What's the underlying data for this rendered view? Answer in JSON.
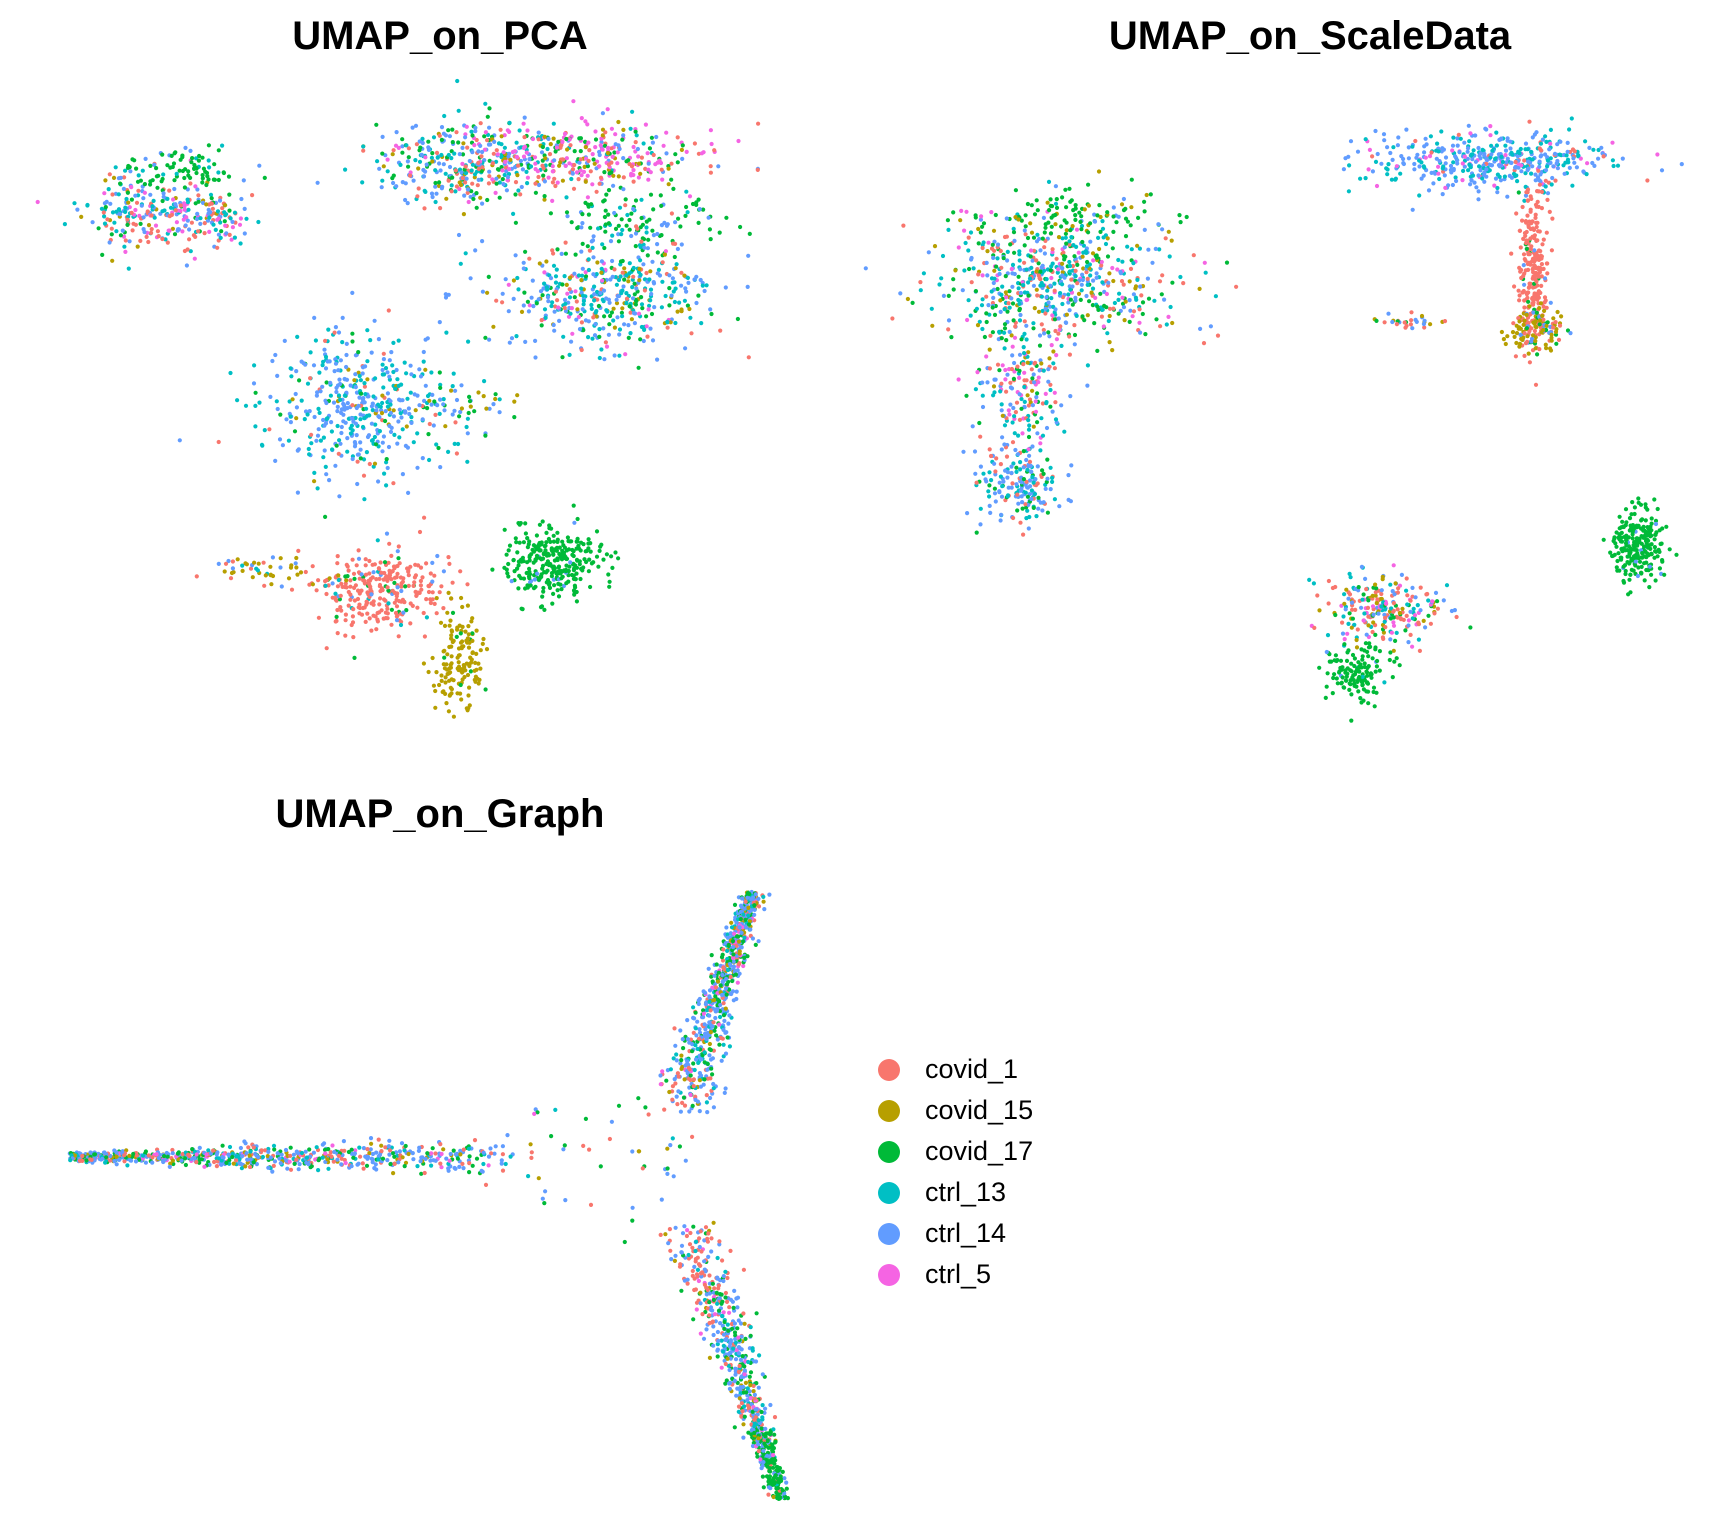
{
  "chart_data": [
    {
      "type": "scatter",
      "title": "UMAP_on_PCA",
      "xlabel": "",
      "ylabel": "",
      "axes": "none",
      "grid": false,
      "legend": "none",
      "clusters": [
        {
          "group": "ctrl_14",
          "mix": {
            "covid_1": 0.2,
            "covid_15": 0.05,
            "covid_17": 0.1,
            "ctrl_13": 0.25,
            "ctrl_14": 0.25,
            "ctrl_5": 0.15
          },
          "center": [
            -8.2,
            7.9
          ],
          "spread": [
            0.9,
            0.55
          ],
          "n": 220
        },
        {
          "group": "covid_17",
          "mix": {
            "covid_17": 0.8,
            "ctrl_13": 0.1,
            "ctrl_14": 0.1
          },
          "center": [
            -7.3,
            9.0
          ],
          "spread": [
            0.9,
            0.35
          ],
          "n": 90
        },
        {
          "group": "mixed",
          "mix": {
            "covid_1": 0.25,
            "covid_15": 0.05,
            "covid_17": 0.15,
            "ctrl_13": 0.2,
            "ctrl_14": 0.2,
            "ctrl_5": 0.15
          },
          "center": [
            -6.3,
            7.7
          ],
          "spread": [
            0.5,
            0.35
          ],
          "n": 90
        },
        {
          "group": "ctrl_14",
          "mix": {
            "covid_1": 0.15,
            "covid_15": 0.05,
            "covid_17": 0.2,
            "ctrl_13": 0.25,
            "ctrl_14": 0.3,
            "ctrl_5": 0.05
          },
          "center": [
            0.8,
            9.2
          ],
          "spread": [
            1.3,
            0.6
          ],
          "n": 360
        },
        {
          "group": "ctrl_5",
          "mix": {
            "covid_1": 0.2,
            "covid_15": 0.1,
            "covid_17": 0.15,
            "ctrl_13": 0.05,
            "ctrl_14": 0.15,
            "ctrl_5": 0.35
          },
          "center": [
            4.3,
            9.4
          ],
          "spread": [
            1.6,
            0.5
          ],
          "n": 330
        },
        {
          "group": "covid_17",
          "mix": {
            "covid_1": 0.05,
            "covid_17": 0.7,
            "ctrl_13": 0.1,
            "ctrl_14": 0.15
          },
          "center": [
            5.5,
            7.6
          ],
          "spread": [
            1.2,
            0.45
          ],
          "n": 120
        },
        {
          "group": "ctrl_13",
          "mix": {
            "covid_1": 0.1,
            "covid_15": 0.1,
            "covid_17": 0.15,
            "ctrl_13": 0.3,
            "ctrl_14": 0.3,
            "ctrl_5": 0.05
          },
          "center": [
            4.8,
            5.5
          ],
          "spread": [
            1.5,
            0.75
          ],
          "n": 460
        },
        {
          "group": "ctrl_14",
          "mix": {
            "covid_1": 0.05,
            "covid_15": 0.05,
            "covid_17": 0.05,
            "ctrl_13": 0.4,
            "ctrl_14": 0.45
          },
          "center": [
            -2.3,
            2.5
          ],
          "spread": [
            1.3,
            1.1
          ],
          "n": 460
        },
        {
          "group": "ctrl_14",
          "mix": {
            "covid_15": 0.3,
            "covid_17": 0.2,
            "ctrl_14": 0.4,
            "ctrl_13": 0.1
          },
          "center": [
            0.3,
            2.3
          ],
          "spread": [
            1.0,
            0.35
          ],
          "n": 45
        },
        {
          "group": "covid_1",
          "mix": {
            "covid_1": 0.85,
            "covid_17": 0.05,
            "ctrl_14": 0.05,
            "ctrl_13": 0.05
          },
          "center": [
            -1.7,
            -2.8
          ],
          "spread": [
            0.9,
            0.55
          ],
          "n": 300
        },
        {
          "group": "covid_15",
          "mix": {
            "covid_15": 0.6,
            "covid_1": 0.1,
            "ctrl_14": 0.15,
            "ctrl_13": 0.15
          },
          "center": [
            -4.8,
            -2.2
          ],
          "spread": [
            1.0,
            0.2
          ],
          "n": 50
        },
        {
          "group": "covid_17",
          "mix": {
            "covid_17": 0.95,
            "ctrl_14": 0.05
          },
          "center": [
            3.2,
            -2.0
          ],
          "spread": [
            0.7,
            0.45
          ],
          "n": 300
        },
        {
          "group": "covid_15",
          "mix": {
            "covid_15": 0.95,
            "covid_17": 0.05
          },
          "center": [
            0.5,
            -4.8
          ],
          "spread": [
            0.35,
            0.7
          ],
          "n": 150
        }
      ],
      "xlim": [
        -11,
        11
      ],
      "ylim": [
        -7,
        11
      ]
    },
    {
      "type": "scatter",
      "title": "UMAP_on_ScaleData",
      "xlabel": "",
      "ylabel": "",
      "axes": "none",
      "grid": false,
      "legend": "none",
      "clusters": [
        {
          "group": "ctrl_14",
          "mix": {
            "covid_1": 0.15,
            "covid_15": 0.1,
            "covid_17": 0.15,
            "ctrl_13": 0.25,
            "ctrl_14": 0.25,
            "ctrl_5": 0.1
          },
          "center": [
            -6.3,
            5.0
          ],
          "spread": [
            1.6,
            1.0
          ],
          "n": 600
        },
        {
          "group": "covid_17",
          "mix": {
            "covid_17": 0.7,
            "covid_15": 0.2,
            "ctrl_14": 0.1
          },
          "center": [
            -6.0,
            7.2
          ],
          "spread": [
            1.3,
            0.45
          ],
          "n": 120
        },
        {
          "group": "mixed",
          "mix": {
            "covid_1": 0.2,
            "covid_15": 0.05,
            "covid_17": 0.15,
            "ctrl_13": 0.2,
            "ctrl_14": 0.25,
            "ctrl_5": 0.15
          },
          "center": [
            -7.2,
            1.5
          ],
          "spread": [
            0.6,
            1.1
          ],
          "n": 200
        },
        {
          "group": "ctrl_14",
          "mix": {
            "covid_1": 0.15,
            "covid_17": 0.15,
            "ctrl_13": 0.3,
            "ctrl_14": 0.4
          },
          "center": [
            -7.3,
            -1.6
          ],
          "spread": [
            0.6,
            0.6
          ],
          "n": 180
        },
        {
          "group": "ctrl_14",
          "mix": {
            "covid_1": 0.05,
            "ctrl_13": 0.35,
            "ctrl_14": 0.5,
            "ctrl_5": 0.1
          },
          "center": [
            5.5,
            9.0
          ],
          "spread": [
            1.6,
            0.45
          ],
          "n": 450
        },
        {
          "group": "covid_1",
          "mix": {
            "covid_1": 0.9,
            "covid_17": 0.05,
            "ctrl_14": 0.05
          },
          "center": [
            6.5,
            5.5
          ],
          "spread": [
            0.2,
            1.5
          ],
          "n": 260
        },
        {
          "group": "covid_15",
          "mix": {
            "covid_15": 0.6,
            "covid_1": 0.15,
            "ctrl_14": 0.15,
            "covid_17": 0.1
          },
          "center": [
            6.6,
            3.5
          ],
          "spread": [
            0.4,
            0.35
          ],
          "n": 110
        },
        {
          "group": "mixed",
          "mix": {
            "covid_1": 0.4,
            "covid_15": 0.2,
            "ctrl_14": 0.3,
            "covid_17": 0.1
          },
          "center": [
            3.0,
            3.7
          ],
          "spread": [
            0.5,
            0.12
          ],
          "n": 30
        },
        {
          "group": "covid_17",
          "mix": {
            "covid_17": 0.95,
            "ctrl_14": 0.05
          },
          "center": [
            9.3,
            -3.7
          ],
          "spread": [
            0.35,
            0.6
          ],
          "n": 250
        },
        {
          "group": "mixed",
          "mix": {
            "covid_1": 0.3,
            "covid_15": 0.1,
            "covid_17": 0.1,
            "ctrl_13": 0.15,
            "ctrl_14": 0.2,
            "ctrl_5": 0.15
          },
          "center": [
            2.5,
            -5.7
          ],
          "spread": [
            0.8,
            0.55
          ],
          "n": 240
        },
        {
          "group": "covid_17",
          "mix": {
            "covid_17": 0.9,
            "ctrl_14": 0.05,
            "ctrl_13": 0.05
          },
          "center": [
            1.8,
            -7.8
          ],
          "spread": [
            0.4,
            0.5
          ],
          "n": 140
        }
      ],
      "xlim": [
        -10,
        11
      ],
      "ylim": [
        -10,
        11
      ]
    },
    {
      "type": "scatter",
      "title": "UMAP_on_Graph",
      "xlabel": "",
      "ylabel": "",
      "axes": "none",
      "grid": false,
      "legend": "right",
      "arms": [
        {
          "direction": "left",
          "from": [
            -4.2,
            0.0
          ],
          "to": [
            -15.5,
            0.0
          ],
          "n": 700
        },
        {
          "direction": "up",
          "from": [
            0.0,
            2.0
          ],
          "to": [
            1.8,
            12.0
          ],
          "n": 700
        },
        {
          "direction": "down",
          "from": [
            0.2,
            -3.0
          ],
          "to": [
            2.5,
            -15.5
          ],
          "n": 700
        }
      ],
      "xlim": [
        -16,
        4
      ],
      "ylim": [
        -16,
        13
      ]
    }
  ],
  "legend": {
    "items": [
      {
        "label": "covid_1",
        "color": "#F8766D"
      },
      {
        "label": "covid_15",
        "color": "#B79F00"
      },
      {
        "label": "covid_17",
        "color": "#00BA38"
      },
      {
        "label": "ctrl_13",
        "color": "#00BFC4"
      },
      {
        "label": "ctrl_14",
        "color": "#619CFF"
      },
      {
        "label": "ctrl_5",
        "color": "#F564E3"
      }
    ]
  }
}
